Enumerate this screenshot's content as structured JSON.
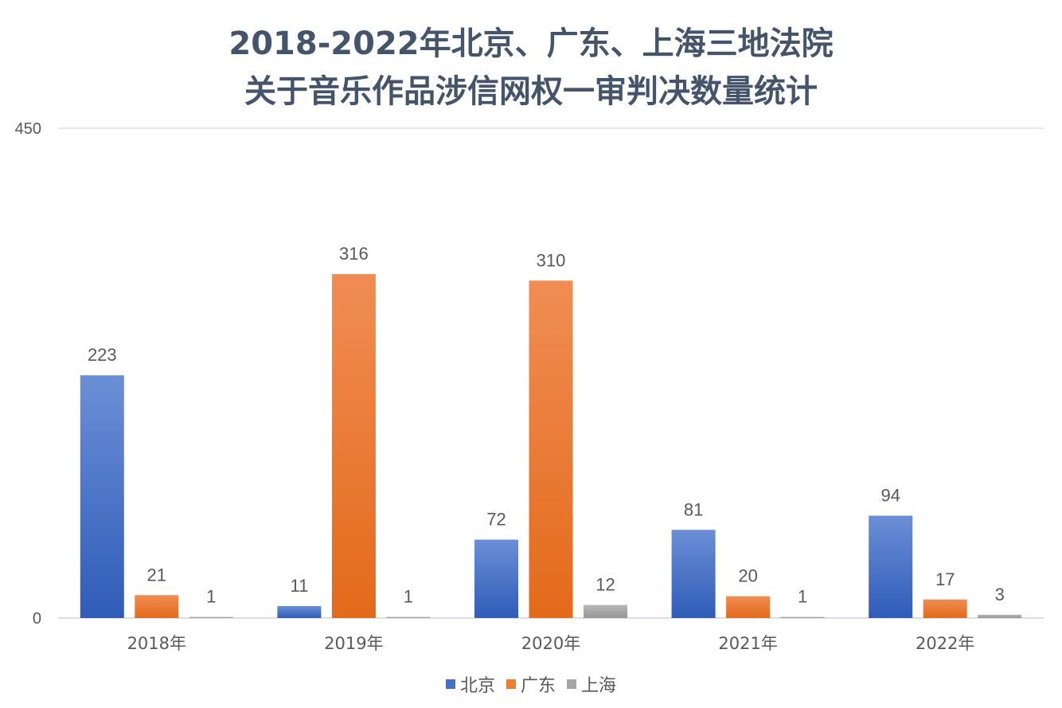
{
  "chart_data": {
    "type": "bar",
    "title": [
      "2018-2022年北京、广东、上海三地法院",
      "关于音乐作品涉信网权一审判决数量统计"
    ],
    "categories": [
      "2018年",
      "2019年",
      "2020年",
      "2021年",
      "2022年"
    ],
    "series": [
      {
        "name": "北京",
        "values": [
          223,
          11,
          72,
          81,
          94
        ],
        "color": "#4472c4",
        "color_light": "#6b8fd6",
        "color_dark": "#2f5cb8"
      },
      {
        "name": "广东",
        "values": [
          21,
          316,
          310,
          20,
          17
        ],
        "color": "#ed7d31",
        "color_light": "#f08d54",
        "color_dark": "#e36a1a"
      },
      {
        "name": "上海",
        "values": [
          1,
          1,
          12,
          1,
          3
        ],
        "color": "#a5a5a5",
        "color_light": "#b8b8b8",
        "color_dark": "#959595"
      }
    ],
    "ylim": [
      0,
      450
    ],
    "y_ticks": [
      0,
      450
    ],
    "grid": true,
    "legend_position": "bottom",
    "data_labels": true
  }
}
